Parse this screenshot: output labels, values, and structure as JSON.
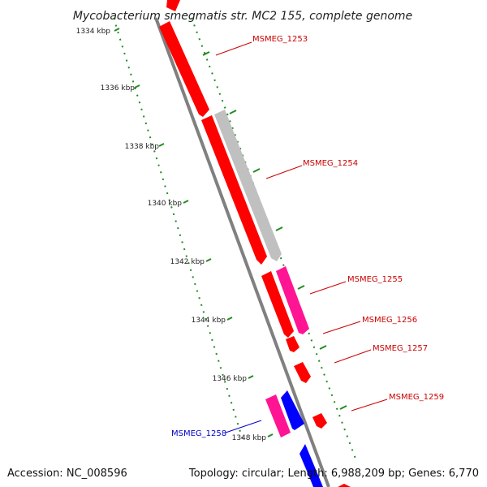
{
  "title": "Mycobacterium smegmatis str. MC2 155, complete genome",
  "footer": {
    "accession": "Accession: NC_008596",
    "summary": "Topology: circular; Length: 6,988,209 bp; Genes: 6,770"
  },
  "colors": {
    "backbone": "#808080",
    "forward_cds": "#ff0000",
    "reverse_cds": "#0000ff",
    "highlight_cds": "#ff1493",
    "other": "#c0c0c0",
    "tick_marks": "#228b22",
    "label_forward": "#cc0000",
    "label_reverse": "#0000cc"
  },
  "ticks": [
    {
      "label": "1334 kbp"
    },
    {
      "label": "1336 kbp"
    },
    {
      "label": "1338 kbp"
    },
    {
      "label": "1340 kbp"
    },
    {
      "label": "1342 kbp"
    },
    {
      "label": "1344 kbp"
    },
    {
      "label": "1346 kbp"
    },
    {
      "label": "1348 kbp"
    }
  ],
  "gene_labels": [
    {
      "name": "MSMEG_1253",
      "strand": "forward"
    },
    {
      "name": "MSMEG_1254",
      "strand": "forward"
    },
    {
      "name": "MSMEG_1255",
      "strand": "forward"
    },
    {
      "name": "MSMEG_1256",
      "strand": "forward"
    },
    {
      "name": "MSMEG_1257",
      "strand": "forward"
    },
    {
      "name": "MSMEG_1259",
      "strand": "forward"
    },
    {
      "name": "MSMEG_1258",
      "strand": "reverse"
    }
  ]
}
